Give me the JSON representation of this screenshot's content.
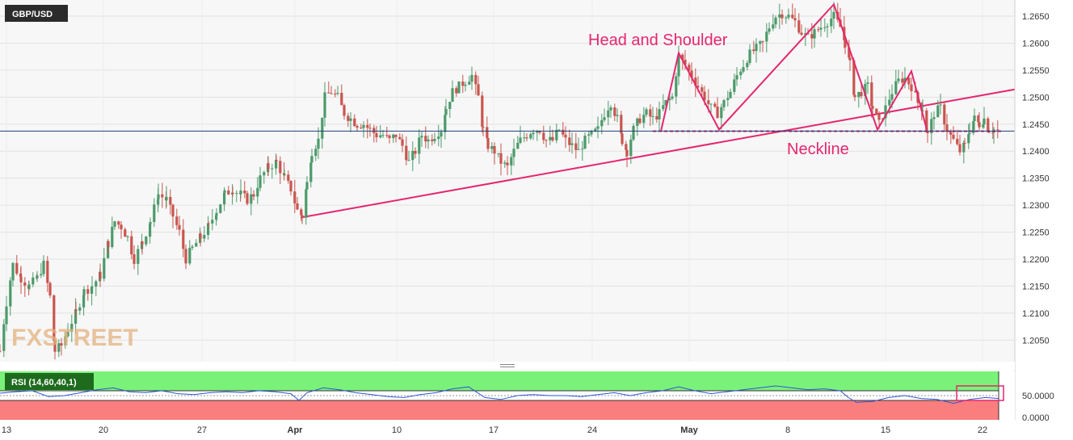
{
  "symbol": "GBP/USD",
  "watermark": "FXSTREET",
  "colors": {
    "up": "#4c9a6b",
    "down": "#c9554e",
    "pattern": "#e5266e",
    "price_line": "#1f3f78",
    "price_badge": "#1f3f78",
    "rsi_line": "#2f55d4",
    "rsi_upper_zone": "#7af27a",
    "rsi_lower_zone": "#fa7e7e",
    "label_badge": "#2b2b2b",
    "rsi_badge": "#1e6b1e"
  },
  "chart_data": [
    {
      "type": "candlestick",
      "title": "GBP/USD",
      "current_price": "1.24372",
      "ylim": [
        1.201,
        1.268
      ],
      "y_ticks": [
        "1.2650",
        "1.2600",
        "1.2550",
        "1.2500",
        "1.2450",
        "1.2400",
        "1.2350",
        "1.2300",
        "1.2250",
        "1.2200",
        "1.2150",
        "1.2100",
        "1.2050"
      ],
      "x_ticks": [
        {
          "label": "13",
          "bold": false
        },
        {
          "label": "20",
          "bold": false
        },
        {
          "label": "27",
          "bold": false
        },
        {
          "label": "Apr",
          "bold": true
        },
        {
          "label": "10",
          "bold": false
        },
        {
          "label": "17",
          "bold": false
        },
        {
          "label": "24",
          "bold": false
        },
        {
          "label": "May",
          "bold": true
        },
        {
          "label": "8",
          "bold": false
        },
        {
          "label": "15",
          "bold": false
        },
        {
          "label": "22",
          "bold": false
        }
      ],
      "price_path": [
        [
          0,
          1.203
        ],
        [
          8,
          1.212
        ],
        [
          16,
          1.219
        ],
        [
          26,
          1.2165
        ],
        [
          36,
          1.215
        ],
        [
          46,
          1.2165
        ],
        [
          54,
          1.219
        ],
        [
          62,
          1.213
        ],
        [
          68,
          1.203
        ],
        [
          76,
          1.204
        ],
        [
          84,
          1.207
        ],
        [
          94,
          1.21
        ],
        [
          104,
          1.214
        ],
        [
          114,
          1.215
        ],
        [
          124,
          1.217
        ],
        [
          134,
          1.223
        ],
        [
          142,
          1.227
        ],
        [
          150,
          1.226
        ],
        [
          158,
          1.224
        ],
        [
          166,
          1.22
        ],
        [
          176,
          1.223
        ],
        [
          186,
          1.227
        ],
        [
          196,
          1.232
        ],
        [
          206,
          1.231
        ],
        [
          214,
          1.228
        ],
        [
          222,
          1.225
        ],
        [
          230,
          1.22
        ],
        [
          238,
          1.222
        ],
        [
          248,
          1.224
        ],
        [
          258,
          1.226
        ],
        [
          268,
          1.229
        ],
        [
          278,
          1.232
        ],
        [
          288,
          1.233
        ],
        [
          298,
          1.232
        ],
        [
          306,
          1.231
        ],
        [
          314,
          1.232
        ],
        [
          322,
          1.235
        ],
        [
          332,
          1.237
        ],
        [
          342,
          1.238
        ],
        [
          352,
          1.235
        ],
        [
          360,
          1.233
        ],
        [
          368,
          1.229
        ],
        [
          374,
          1.228
        ],
        [
          380,
          1.234
        ],
        [
          386,
          1.24
        ],
        [
          394,
          1.242
        ],
        [
          402,
          1.25
        ],
        [
          410,
          1.251
        ],
        [
          418,
          1.25
        ],
        [
          426,
          1.247
        ],
        [
          434,
          1.246
        ],
        [
          442,
          1.245
        ],
        [
          450,
          1.245
        ],
        [
          458,
          1.244
        ],
        [
          466,
          1.243
        ],
        [
          474,
          1.243
        ],
        [
          482,
          1.242
        ],
        [
          490,
          1.243
        ],
        [
          498,
          1.241
        ],
        [
          506,
          1.238
        ],
        [
          514,
          1.24
        ],
        [
          522,
          1.243
        ],
        [
          530,
          1.242
        ],
        [
          538,
          1.243
        ],
        [
          546,
          1.244
        ],
        [
          552,
          1.248
        ],
        [
          560,
          1.251
        ],
        [
          568,
          1.252
        ],
        [
          576,
          1.253
        ],
        [
          584,
          1.254
        ],
        [
          592,
          1.25
        ],
        [
          598,
          1.244
        ],
        [
          604,
          1.241
        ],
        [
          612,
          1.24
        ],
        [
          620,
          1.238
        ],
        [
          628,
          1.237
        ],
        [
          636,
          1.24
        ],
        [
          644,
          1.242
        ],
        [
          652,
          1.243
        ],
        [
          660,
          1.244
        ],
        [
          668,
          1.244
        ],
        [
          676,
          1.242
        ],
        [
          684,
          1.242
        ],
        [
          692,
          1.244
        ],
        [
          700,
          1.242
        ],
        [
          708,
          1.241
        ],
        [
          716,
          1.24
        ],
        [
          724,
          1.242
        ],
        [
          732,
          1.243
        ],
        [
          740,
          1.244
        ],
        [
          748,
          1.247
        ],
        [
          756,
          1.249
        ],
        [
          764,
          1.246
        ],
        [
          770,
          1.242
        ],
        [
          776,
          1.24
        ],
        [
          784,
          1.244
        ],
        [
          792,
          1.246
        ],
        [
          800,
          1.247
        ],
        [
          808,
          1.246
        ],
        [
          816,
          1.247
        ],
        [
          824,
          1.249
        ],
        [
          832,
          1.25
        ],
        [
          840,
          1.2575
        ],
        [
          848,
          1.256
        ],
        [
          856,
          1.254
        ],
        [
          864,
          1.252
        ],
        [
          872,
          1.25
        ],
        [
          880,
          1.248
        ],
        [
          888,
          1.247
        ],
        [
          896,
          1.249
        ],
        [
          904,
          1.251
        ],
        [
          912,
          1.254
        ],
        [
          920,
          1.256
        ],
        [
          928,
          1.258
        ],
        [
          936,
          1.259
        ],
        [
          944,
          1.26
        ],
        [
          952,
          1.263
        ],
        [
          960,
          1.265
        ],
        [
          968,
          1.2655
        ],
        [
          976,
          1.265
        ],
        [
          984,
          1.264
        ],
        [
          992,
          1.262
        ],
        [
          1000,
          1.261
        ],
        [
          1008,
          1.262
        ],
        [
          1016,
          1.263
        ],
        [
          1024,
          1.264
        ],
        [
          1032,
          1.265
        ],
        [
          1040,
          1.263
        ],
        [
          1046,
          1.26
        ],
        [
          1052,
          1.256
        ],
        [
          1058,
          1.25
        ],
        [
          1066,
          1.251
        ],
        [
          1074,
          1.252
        ],
        [
          1080,
          1.248
        ],
        [
          1088,
          1.245
        ],
        [
          1096,
          1.248
        ],
        [
          1104,
          1.251
        ],
        [
          1112,
          1.253
        ],
        [
          1120,
          1.2535
        ],
        [
          1128,
          1.252
        ],
        [
          1136,
          1.249
        ],
        [
          1142,
          1.248
        ],
        [
          1148,
          1.243
        ],
        [
          1156,
          1.247
        ],
        [
          1164,
          1.248
        ],
        [
          1172,
          1.244
        ],
        [
          1180,
          1.242
        ],
        [
          1188,
          1.24
        ],
        [
          1194,
          1.241
        ],
        [
          1200,
          1.244
        ],
        [
          1206,
          1.246
        ],
        [
          1212,
          1.245
        ],
        [
          1218,
          1.246
        ],
        [
          1224,
          1.244
        ],
        [
          1230,
          1.244
        ],
        [
          1236,
          1.2437
        ]
      ],
      "trendline": {
        "from": [
          372,
          1.2277
        ],
        "to": [
          1258,
          1.2515
        ]
      },
      "neckline": {
        "from": [
          808,
          1.2437
        ],
        "to": [
          1240,
          1.2437
        ]
      },
      "pattern_path": [
        [
          818,
          1.2437
        ],
        [
          840,
          1.2582
        ],
        [
          890,
          1.244
        ],
        [
          1032,
          1.2672
        ],
        [
          1086,
          1.244
        ],
        [
          1128,
          1.2548
        ],
        [
          1147,
          1.244
        ]
      ],
      "annotations": [
        {
          "text": "Head and Shoulder",
          "x": 728,
          "y": 1.2607
        },
        {
          "text": "Neckline",
          "x": 974,
          "y": 1.2405
        }
      ]
    },
    {
      "type": "line",
      "title": "RSI (14,60,40,1)",
      "ylim": [
        0,
        100
      ],
      "upper_level": 60,
      "lower_level": 40,
      "y_ticks": [
        "50.0000",
        "0.0000"
      ],
      "values": [
        [
          0,
          55
        ],
        [
          20,
          58
        ],
        [
          40,
          60
        ],
        [
          60,
          48
        ],
        [
          80,
          50
        ],
        [
          100,
          56
        ],
        [
          120,
          62
        ],
        [
          140,
          66
        ],
        [
          160,
          58
        ],
        [
          180,
          56
        ],
        [
          200,
          60
        ],
        [
          220,
          54
        ],
        [
          240,
          52
        ],
        [
          260,
          56
        ],
        [
          280,
          58
        ],
        [
          300,
          56
        ],
        [
          320,
          60
        ],
        [
          340,
          58
        ],
        [
          360,
          54
        ],
        [
          370,
          40
        ],
        [
          380,
          56
        ],
        [
          400,
          66
        ],
        [
          420,
          62
        ],
        [
          440,
          56
        ],
        [
          460,
          52
        ],
        [
          480,
          48
        ],
        [
          500,
          46
        ],
        [
          520,
          52
        ],
        [
          540,
          56
        ],
        [
          560,
          64
        ],
        [
          580,
          68
        ],
        [
          600,
          46
        ],
        [
          620,
          42
        ],
        [
          640,
          50
        ],
        [
          660,
          52
        ],
        [
          680,
          50
        ],
        [
          700,
          50
        ],
        [
          720,
          48
        ],
        [
          740,
          52
        ],
        [
          760,
          56
        ],
        [
          780,
          50
        ],
        [
          800,
          56
        ],
        [
          820,
          60
        ],
        [
          840,
          68
        ],
        [
          860,
          60
        ],
        [
          880,
          54
        ],
        [
          900,
          58
        ],
        [
          920,
          62
        ],
        [
          940,
          66
        ],
        [
          960,
          70
        ],
        [
          980,
          66
        ],
        [
          1000,
          62
        ],
        [
          1020,
          64
        ],
        [
          1040,
          60
        ],
        [
          1050,
          46
        ],
        [
          1060,
          36
        ],
        [
          1080,
          38
        ],
        [
          1100,
          46
        ],
        [
          1120,
          50
        ],
        [
          1140,
          44
        ],
        [
          1160,
          42
        ],
        [
          1180,
          34
        ],
        [
          1200,
          42
        ],
        [
          1220,
          46
        ],
        [
          1236,
          44
        ]
      ],
      "highlight_box": {
        "x0": 1184,
        "x1": 1242,
        "y0": 70,
        "y1": 40
      }
    }
  ]
}
